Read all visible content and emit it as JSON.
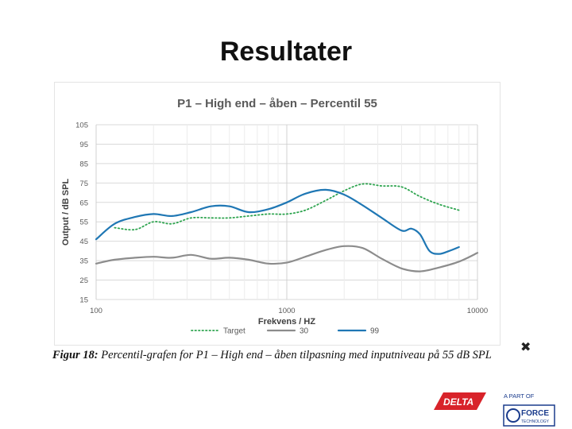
{
  "slide": {
    "title": "Resultater",
    "caption_label": "Figur 18:",
    "caption_text": "Percentil-grafen for P1 – High end – åben tilpasning med inputniveau på 55 dB SPL"
  },
  "logos": {
    "delta_text": "DELTA",
    "partof_text": "A PART OF",
    "force_text": "FORCE",
    "technology_text": "TECHNOLOGY",
    "delta_color": "#d8232a",
    "force_color": "#1a3b8c"
  },
  "chart_data": {
    "type": "line",
    "title": "P1 – High end – åben – Percentil 55",
    "xlabel": "Frekvens / HZ",
    "ylabel": "Output / dB SPL",
    "xscale": "log",
    "xlim": [
      100,
      10000
    ],
    "ylim": [
      15,
      105
    ],
    "yticks": [
      15,
      25,
      35,
      45,
      55,
      65,
      75,
      85,
      95,
      105
    ],
    "xticks": [
      100,
      1000,
      10000
    ],
    "xtick_labels": [
      "100",
      "1000",
      "10000"
    ],
    "grid": true,
    "legend_position": "bottom",
    "series": [
      {
        "name": "Target",
        "color": "#2ea44f",
        "style": "dotted",
        "x": [
          125,
          160,
          200,
          250,
          315,
          400,
          500,
          630,
          800,
          1000,
          1250,
          1600,
          2000,
          2500,
          3150,
          4000,
          5000,
          6300,
          8000
        ],
        "y": [
          52,
          51,
          55,
          54,
          57,
          57,
          57,
          58,
          59,
          59,
          61,
          66,
          71,
          74.5,
          73.5,
          73,
          68,
          64,
          61
        ]
      },
      {
        "name": "30",
        "color": "#8c8c8c",
        "style": "solid",
        "x": [
          100,
          125,
          160,
          200,
          250,
          315,
          400,
          500,
          630,
          800,
          1000,
          1250,
          1600,
          2000,
          2500,
          3150,
          4000,
          5000,
          6300,
          8000,
          10000
        ],
        "y": [
          33.5,
          35.5,
          36.5,
          37,
          36.5,
          38,
          36,
          36.5,
          35.5,
          33.5,
          34,
          37,
          40.5,
          42.5,
          41.5,
          36,
          31,
          29.5,
          31.5,
          34.5,
          39
        ]
      },
      {
        "name": "99",
        "color": "#1f77b4",
        "style": "solid",
        "x": [
          100,
          125,
          160,
          200,
          250,
          315,
          400,
          500,
          630,
          800,
          1000,
          1250,
          1600,
          2000,
          2500,
          3150,
          4000,
          4500,
          5000,
          5600,
          6300,
          7100,
          8000
        ],
        "y": [
          46,
          54,
          57.5,
          59,
          58,
          60,
          63,
          63,
          60,
          61.5,
          65,
          69.5,
          71.5,
          69,
          63.5,
          57,
          50.5,
          51.5,
          48.5,
          40,
          38.5,
          40,
          42
        ]
      }
    ]
  }
}
